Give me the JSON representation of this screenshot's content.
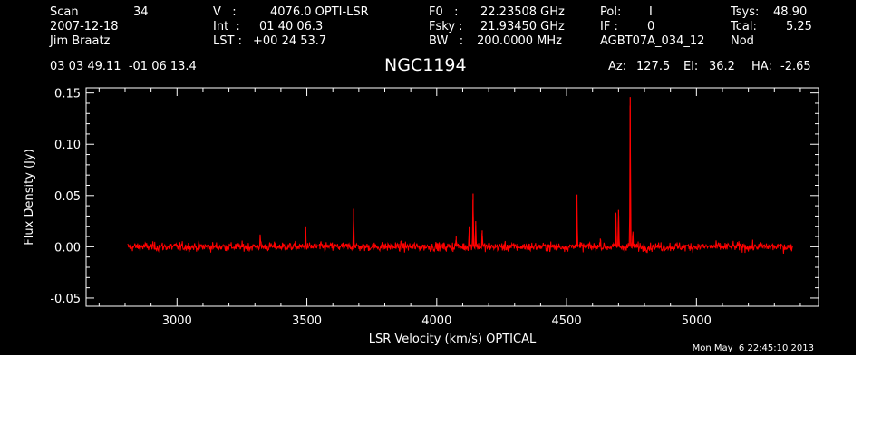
{
  "header": {
    "scan_label": "Scan",
    "scan_value": "34",
    "date": "2007-12-18",
    "observer": "Jim Braatz",
    "v_label": "V   :",
    "v_value": "4076.0 OPTI-LSR",
    "int_label": "Int  :",
    "int_value": "01 40 06.3",
    "lst_label": "LST :",
    "lst_value": "+00 24 53.7",
    "f0_label": "F0   :",
    "f0_value": "22.23508 GHz",
    "fsky_label": "Fsky :",
    "fsky_value": "21.93450 GHz",
    "bw_label": "BW   :",
    "bw_value": "200.0000 MHz",
    "pol_label": "Pol:",
    "pol_value": "I",
    "if_label": "IF :",
    "if_value": "0",
    "project": "AGBT07A_034_12",
    "tsys_label": "Tsys:",
    "tsys_value": "48.90",
    "tcal_label": "Tcal:",
    "tcal_value": "5.25",
    "mode": "Nod",
    "coords": "03 03 49.11  -01 06 13.4",
    "az_label": "Az:",
    "az_value": "127.5",
    "el_label": "El:",
    "el_value": "36.2",
    "ha_label": "HA:",
    "ha_value": "-2.65"
  },
  "timestamp": "Mon May  6 22:45:10 2013",
  "colors": {
    "background": "#000000",
    "foreground": "#ffffff",
    "trace": "#ff0000"
  },
  "chart_data": {
    "type": "line",
    "title": "NGC1194",
    "xlabel": "LSR Velocity (km/s) OPTICAL",
    "ylabel": "Flux Density (Jy)",
    "xlim": [
      2650,
      5470
    ],
    "ylim": [
      -0.058,
      0.155
    ],
    "xticks": [
      3000,
      3500,
      4000,
      4500,
      5000
    ],
    "xtick_labels": [
      "3000",
      "3500",
      "4000",
      "4500",
      "5000"
    ],
    "yticks": [
      -0.05,
      0.0,
      0.05,
      0.1,
      0.15
    ],
    "ytick_labels": [
      "-0.05",
      "0.00",
      "0.05",
      "0.10",
      "0.15"
    ],
    "grid": false,
    "series": [
      {
        "x_range": [
          2810,
          5370
        ],
        "baseline": 0.0,
        "noise_rms": 0.0022,
        "features": [
          {
            "x": 3320,
            "y": 0.012
          },
          {
            "x": 3495,
            "y": 0.02
          },
          {
            "x": 3680,
            "y": 0.037
          },
          {
            "x": 4075,
            "y": 0.01
          },
          {
            "x": 4125,
            "y": 0.02
          },
          {
            "x": 4140,
            "y": 0.052
          },
          {
            "x": 4150,
            "y": 0.025
          },
          {
            "x": 4175,
            "y": 0.016
          },
          {
            "x": 4540,
            "y": 0.051
          },
          {
            "x": 4630,
            "y": 0.008
          },
          {
            "x": 4690,
            "y": 0.032
          },
          {
            "x": 4700,
            "y": 0.036
          },
          {
            "x": 4745,
            "y": 0.146
          },
          {
            "x": 4755,
            "y": 0.012
          }
        ]
      }
    ]
  }
}
